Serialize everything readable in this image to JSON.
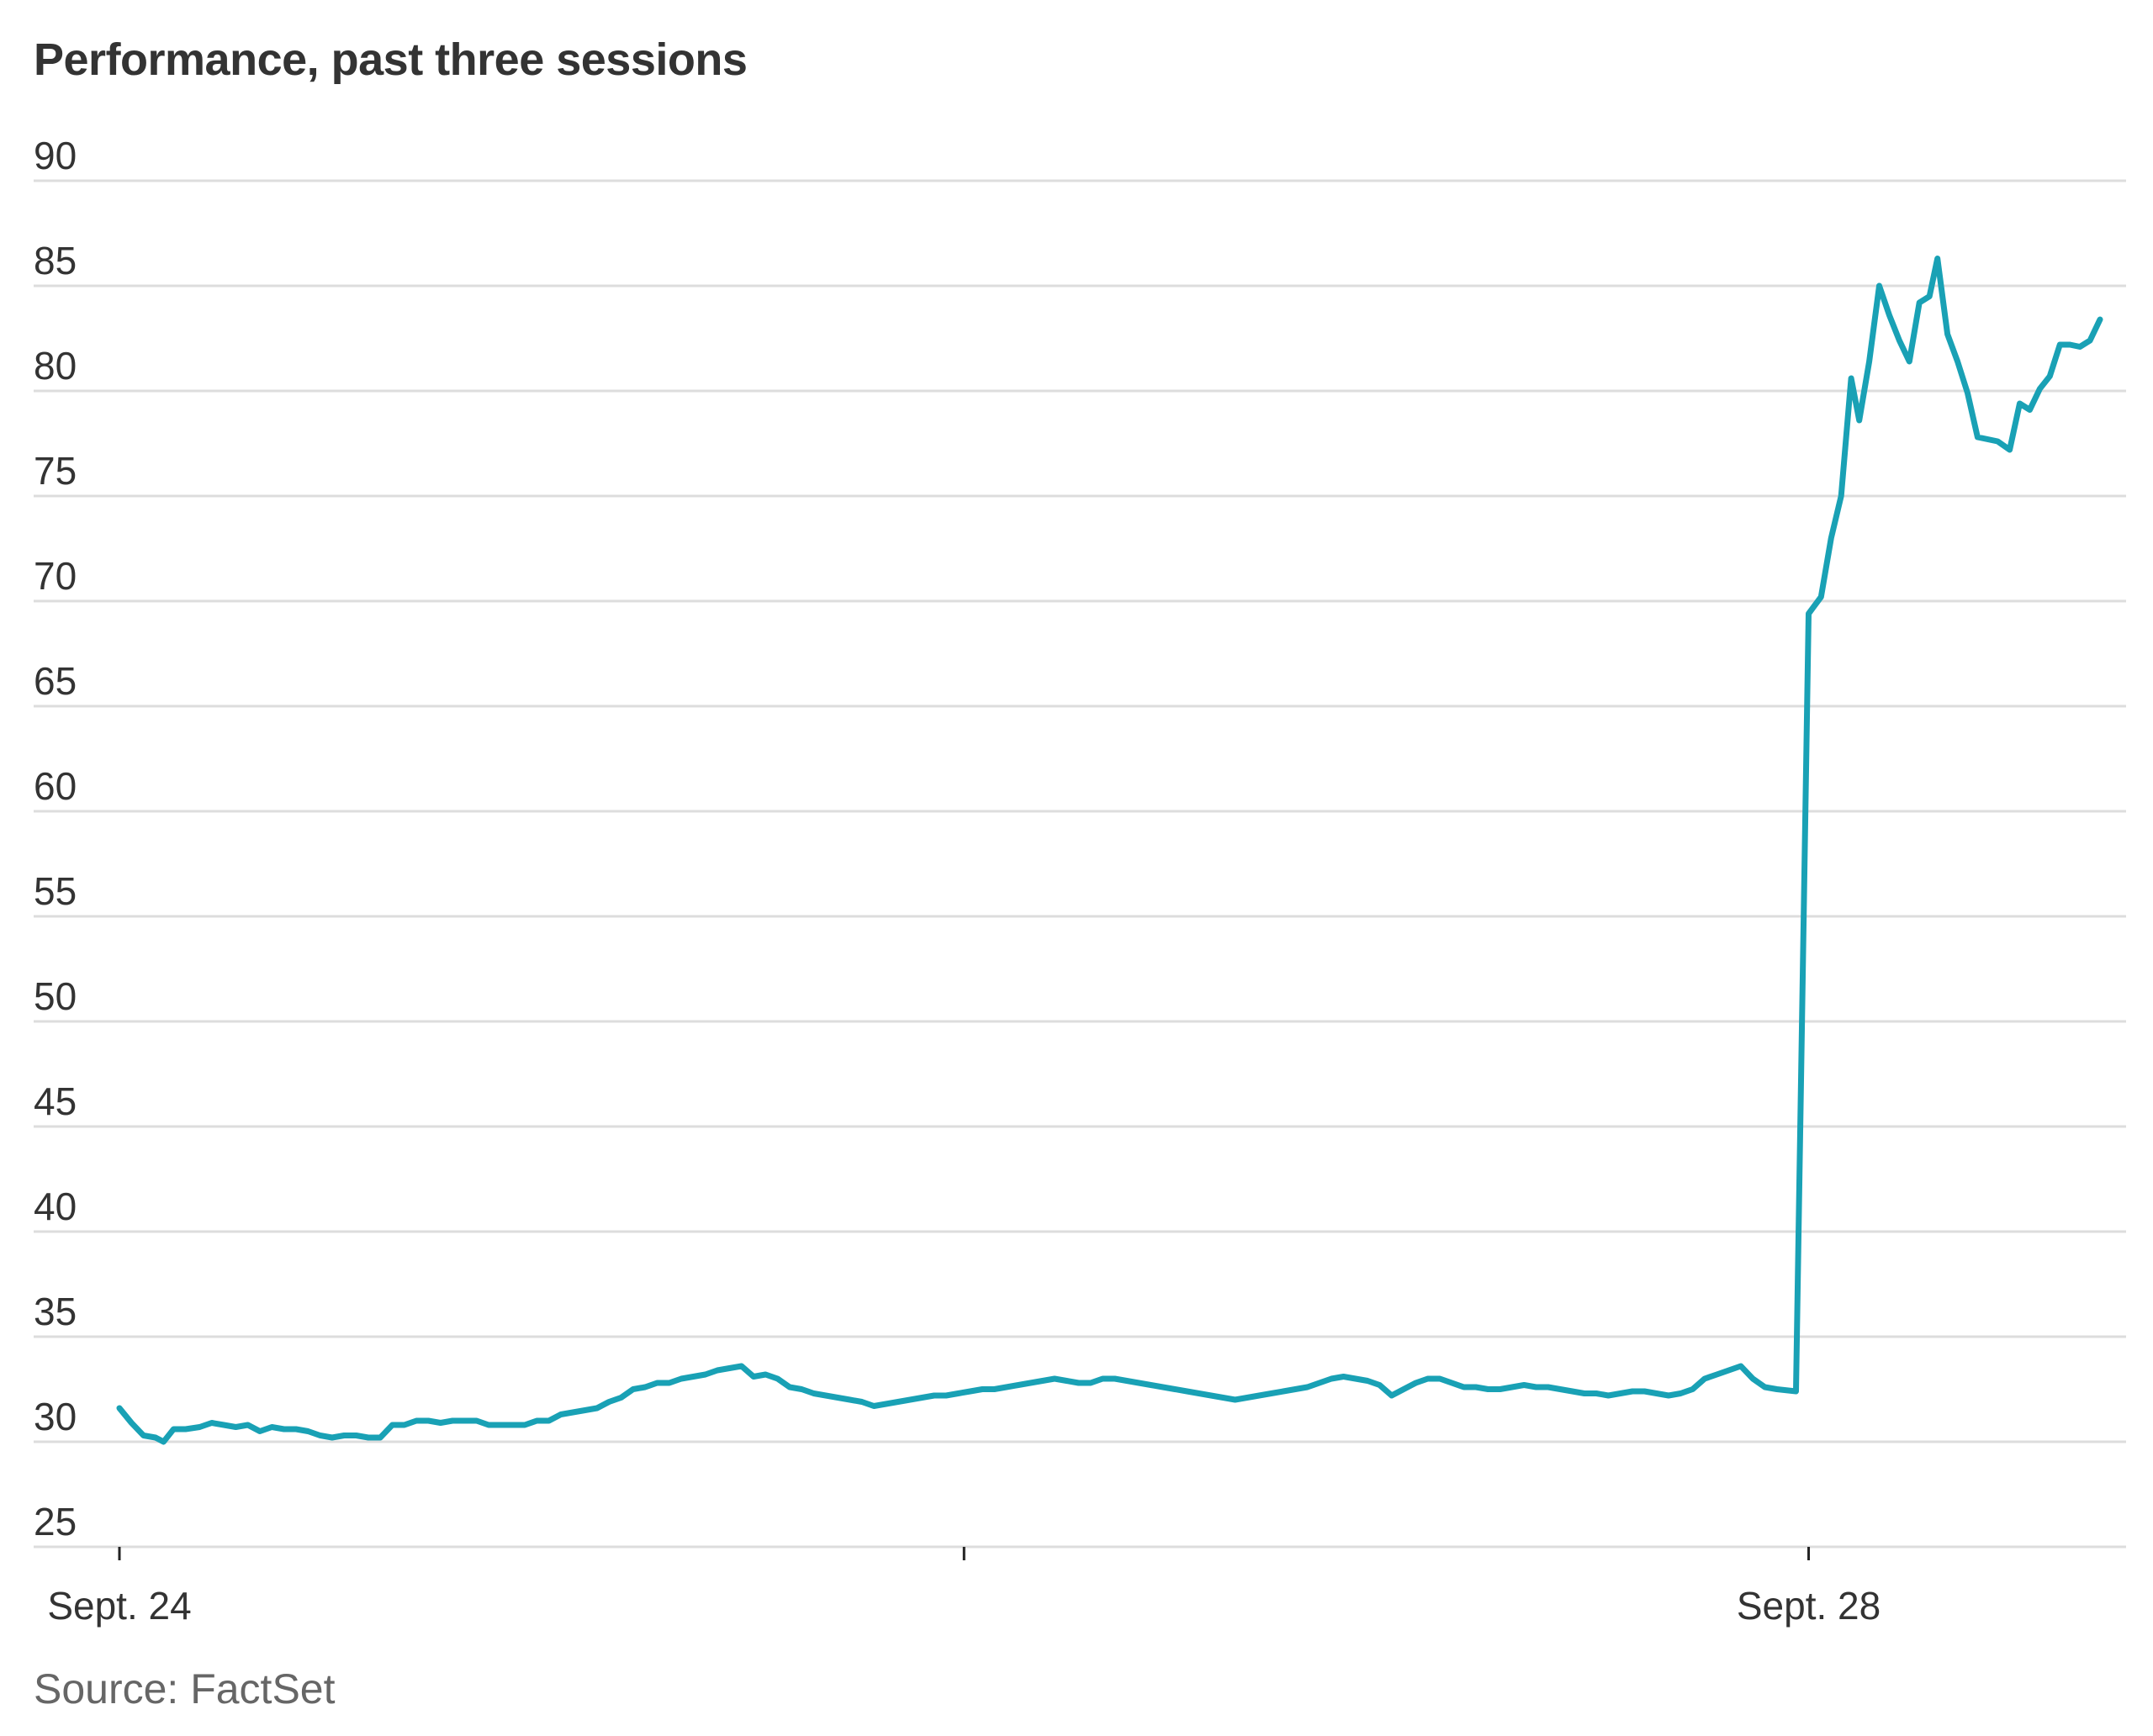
{
  "title": "Performance, past three sessions",
  "source": "Source: FactSet",
  "colors": {
    "line": "#19a1b5",
    "grid": "#dddddd",
    "text": "#333333"
  },
  "chart_data": {
    "type": "line",
    "title": "Performance, past three sessions",
    "xlabel": "",
    "ylabel": "",
    "ylim": [
      25,
      90
    ],
    "yticks": [
      25,
      30,
      35,
      40,
      45,
      50,
      55,
      60,
      65,
      70,
      75,
      80,
      85,
      90
    ],
    "xticks": [
      {
        "label": "Sept. 24",
        "x": 0
      },
      {
        "label": "",
        "x": 0.4209
      },
      {
        "label": "Sept. 28",
        "x": 0.8418
      }
    ],
    "grid": true,
    "series": [
      {
        "values": [
          [
            0.0,
            31.6
          ],
          [
            0.006,
            30.9
          ],
          [
            0.012,
            30.3
          ],
          [
            0.018,
            30.2
          ],
          [
            0.022,
            30.0
          ],
          [
            0.027,
            30.6
          ],
          [
            0.033,
            30.6
          ],
          [
            0.04,
            30.7
          ],
          [
            0.046,
            30.9
          ],
          [
            0.052,
            30.8
          ],
          [
            0.058,
            30.7
          ],
          [
            0.064,
            30.8
          ],
          [
            0.07,
            30.5
          ],
          [
            0.076,
            30.7
          ],
          [
            0.082,
            30.6
          ],
          [
            0.088,
            30.6
          ],
          [
            0.094,
            30.5
          ],
          [
            0.1,
            30.3
          ],
          [
            0.106,
            30.2
          ],
          [
            0.112,
            30.3
          ],
          [
            0.118,
            30.3
          ],
          [
            0.124,
            30.2
          ],
          [
            0.13,
            30.2
          ],
          [
            0.136,
            30.8
          ],
          [
            0.142,
            30.8
          ],
          [
            0.148,
            31.0
          ],
          [
            0.154,
            31.0
          ],
          [
            0.16,
            30.9
          ],
          [
            0.166,
            31.0
          ],
          [
            0.172,
            31.0
          ],
          [
            0.178,
            31.0
          ],
          [
            0.184,
            30.8
          ],
          [
            0.19,
            30.8
          ],
          [
            0.196,
            30.8
          ],
          [
            0.202,
            30.8
          ],
          [
            0.208,
            31.0
          ],
          [
            0.214,
            31.0
          ],
          [
            0.22,
            31.3
          ],
          [
            0.226,
            31.4
          ],
          [
            0.232,
            31.5
          ],
          [
            0.238,
            31.6
          ],
          [
            0.244,
            31.9
          ],
          [
            0.25,
            32.1
          ],
          [
            0.256,
            32.5
          ],
          [
            0.262,
            32.6
          ],
          [
            0.268,
            32.8
          ],
          [
            0.274,
            32.8
          ],
          [
            0.28,
            33.0
          ],
          [
            0.286,
            33.1
          ],
          [
            0.292,
            33.2
          ],
          [
            0.298,
            33.4
          ],
          [
            0.304,
            33.5
          ],
          [
            0.31,
            33.6
          ],
          [
            0.316,
            33.1
          ],
          [
            0.322,
            33.2
          ],
          [
            0.328,
            33.0
          ],
          [
            0.334,
            32.6
          ],
          [
            0.34,
            32.5
          ],
          [
            0.346,
            32.3
          ],
          [
            0.352,
            32.2
          ],
          [
            0.358,
            32.1
          ],
          [
            0.364,
            32.0
          ],
          [
            0.37,
            31.9
          ],
          [
            0.376,
            31.7
          ],
          [
            0.382,
            31.8
          ],
          [
            0.388,
            31.9
          ],
          [
            0.394,
            32.0
          ],
          [
            0.4,
            32.1
          ],
          [
            0.406,
            32.2
          ],
          [
            0.412,
            32.2
          ],
          [
            0.418,
            32.3
          ],
          [
            0.424,
            32.4
          ],
          [
            0.43,
            32.5
          ],
          [
            0.436,
            32.5
          ],
          [
            0.442,
            32.6
          ],
          [
            0.448,
            32.7
          ],
          [
            0.454,
            32.8
          ],
          [
            0.46,
            32.9
          ],
          [
            0.466,
            33.0
          ],
          [
            0.472,
            32.9
          ],
          [
            0.478,
            32.8
          ],
          [
            0.484,
            32.8
          ],
          [
            0.49,
            33.0
          ],
          [
            0.496,
            33.0
          ],
          [
            0.502,
            32.9
          ],
          [
            0.508,
            32.8
          ],
          [
            0.514,
            32.7
          ],
          [
            0.52,
            32.6
          ],
          [
            0.526,
            32.5
          ],
          [
            0.532,
            32.4
          ],
          [
            0.538,
            32.3
          ],
          [
            0.544,
            32.2
          ],
          [
            0.55,
            32.1
          ],
          [
            0.556,
            32.0
          ],
          [
            0.562,
            32.1
          ],
          [
            0.568,
            32.2
          ],
          [
            0.574,
            32.3
          ],
          [
            0.58,
            32.4
          ],
          [
            0.586,
            32.5
          ],
          [
            0.592,
            32.6
          ],
          [
            0.598,
            32.8
          ],
          [
            0.604,
            33.0
          ],
          [
            0.61,
            33.1
          ],
          [
            0.616,
            33.0
          ],
          [
            0.622,
            32.9
          ],
          [
            0.628,
            32.7
          ],
          [
            0.634,
            32.2
          ],
          [
            0.64,
            32.5
          ],
          [
            0.646,
            32.8
          ],
          [
            0.652,
            33.0
          ],
          [
            0.658,
            33.0
          ],
          [
            0.664,
            32.8
          ],
          [
            0.67,
            32.6
          ],
          [
            0.676,
            32.6
          ],
          [
            0.682,
            32.5
          ],
          [
            0.688,
            32.5
          ],
          [
            0.694,
            32.6
          ],
          [
            0.7,
            32.7
          ],
          [
            0.706,
            32.6
          ],
          [
            0.712,
            32.6
          ],
          [
            0.718,
            32.5
          ],
          [
            0.724,
            32.4
          ],
          [
            0.73,
            32.3
          ],
          [
            0.736,
            32.3
          ],
          [
            0.742,
            32.2
          ],
          [
            0.748,
            32.3
          ],
          [
            0.754,
            32.4
          ],
          [
            0.76,
            32.4
          ],
          [
            0.766,
            32.3
          ],
          [
            0.772,
            32.2
          ],
          [
            0.778,
            32.3
          ],
          [
            0.784,
            32.5
          ],
          [
            0.79,
            33.0
          ],
          [
            0.796,
            33.2
          ],
          [
            0.802,
            33.4
          ],
          [
            0.808,
            33.6
          ],
          [
            0.814,
            33.0
          ],
          [
            0.82,
            32.6
          ],
          [
            0.826,
            32.5
          ],
          [
            0.8355,
            32.4
          ],
          [
            0.8418,
            69.4
          ],
          [
            0.848,
            70.2
          ],
          [
            0.853,
            73.0
          ],
          [
            0.858,
            75.0
          ],
          [
            0.863,
            80.6
          ],
          [
            0.867,
            78.6
          ],
          [
            0.872,
            81.4
          ],
          [
            0.877,
            85.0
          ],
          [
            0.882,
            83.6
          ],
          [
            0.887,
            82.4
          ],
          [
            0.892,
            81.4
          ],
          [
            0.897,
            84.2
          ],
          [
            0.902,
            84.5
          ],
          [
            0.906,
            86.3
          ],
          [
            0.911,
            82.7
          ],
          [
            0.916,
            81.4
          ],
          [
            0.921,
            79.9
          ],
          [
            0.926,
            77.8
          ],
          [
            0.931,
            77.7
          ],
          [
            0.936,
            77.6
          ],
          [
            0.942,
            77.2
          ],
          [
            0.947,
            79.4
          ],
          [
            0.952,
            79.1
          ],
          [
            0.957,
            80.1
          ],
          [
            0.962,
            80.7
          ],
          [
            0.967,
            82.2
          ],
          [
            0.972,
            82.2
          ],
          [
            0.977,
            82.1
          ],
          [
            0.982,
            82.4
          ],
          [
            0.987,
            83.4
          ]
        ]
      }
    ]
  }
}
